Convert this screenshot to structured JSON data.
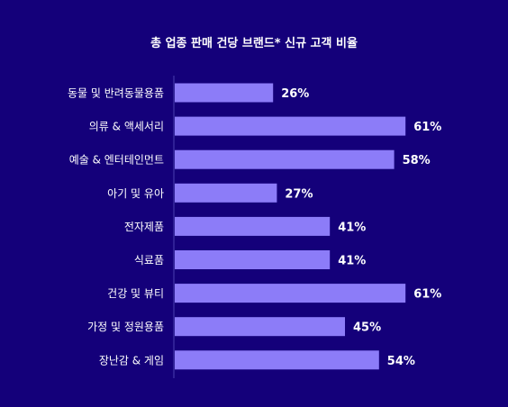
{
  "chart_data": {
    "type": "bar",
    "orientation": "horizontal",
    "title": "총 업종 판매 건당 브랜드* 신규 고객 비율",
    "categories": [
      "동물 및 반려동물용품",
      "의류 & 액세서리",
      "예술 & 엔터테인먼트",
      "아기 및 유아",
      "전자제품",
      "식료품",
      "건강 및 뷰티",
      "가정 및 정원용품",
      "장난감 & 게임"
    ],
    "values": [
      26,
      61,
      58,
      27,
      41,
      41,
      61,
      45,
      54
    ],
    "value_labels": [
      "26%",
      "61%",
      "58%",
      "27%",
      "41%",
      "41%",
      "61%",
      "45%",
      "54%"
    ],
    "value_suffix": "%",
    "xlim": [
      0,
      100
    ],
    "grid": false,
    "legend": "none",
    "colors": {
      "background": "#14007a",
      "bar": "#8c7cf8",
      "text": "#ffffff",
      "axis_line": "#4a3fb0"
    }
  }
}
